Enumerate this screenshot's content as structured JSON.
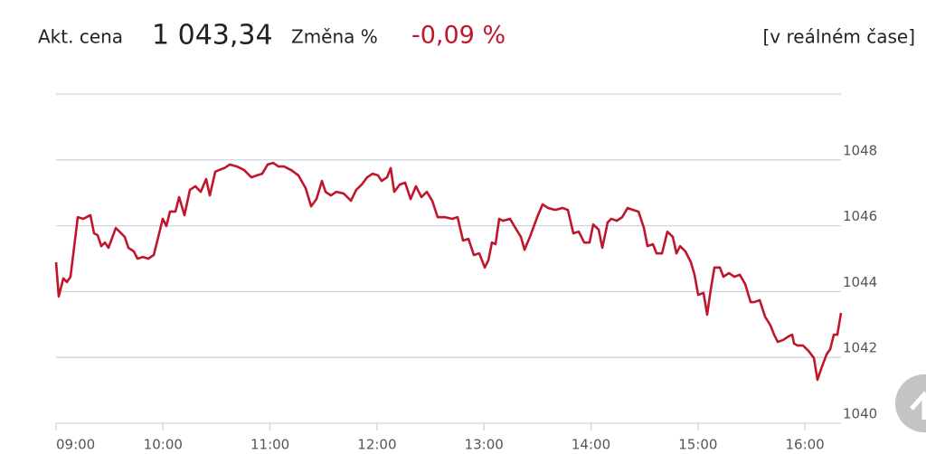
{
  "header": {
    "price_label": "Akt. cena",
    "price": "1 043,34",
    "change_label": "Změna %",
    "change": "-0,09 %",
    "mode": "[v reálném čase]"
  },
  "chart_data": {
    "type": "line",
    "x": [
      9,
      9.025,
      9.068,
      9.101,
      9.135,
      9.203,
      9.254,
      9.321,
      9.355,
      9.389,
      9.423,
      9.456,
      9.49,
      9.558,
      9.609,
      9.642,
      9.676,
      9.727,
      9.761,
      9.811,
      9.862,
      9.913,
      9.964,
      9.997,
      10.031,
      10.065,
      10.116,
      10.15,
      10.2,
      10.251,
      10.302,
      10.352,
      10.403,
      10.437,
      10.488,
      10.522,
      10.572,
      10.623,
      10.691,
      10.758,
      10.826,
      10.877,
      10.927,
      10.978,
      11.029,
      11.079,
      11.13,
      11.198,
      11.265,
      11.333,
      11.384,
      11.434,
      11.485,
      11.519,
      11.57,
      11.62,
      11.688,
      11.756,
      11.806,
      11.857,
      11.908,
      11.959,
      12.009,
      12.043,
      12.094,
      12.128,
      12.161,
      12.212,
      12.263,
      12.314,
      12.364,
      12.415,
      12.466,
      12.516,
      12.567,
      12.635,
      12.702,
      12.753,
      12.804,
      12.855,
      12.905,
      12.956,
      13.007,
      13.041,
      13.074,
      13.108,
      13.142,
      13.176,
      13.243,
      13.294,
      13.345,
      13.379,
      13.429,
      13.497,
      13.548,
      13.598,
      13.666,
      13.734,
      13.784,
      13.835,
      13.886,
      13.937,
      13.987,
      14.021,
      14.072,
      14.106,
      14.156,
      14.19,
      14.241,
      14.292,
      14.342,
      14.393,
      14.444,
      14.495,
      14.528,
      14.579,
      14.613,
      14.664,
      14.714,
      14.765,
      14.799,
      14.833,
      14.883,
      14.934,
      14.968,
      15.002,
      15.052,
      15.086,
      15.12,
      15.154,
      15.205,
      15.238,
      15.289,
      15.34,
      15.391,
      15.441,
      15.492,
      15.526,
      15.577,
      15.627,
      15.678,
      15.712,
      15.746,
      15.796,
      15.847,
      15.881,
      15.898,
      15.932,
      15.982,
      16.033,
      16.084,
      16.117,
      16.151,
      16.202,
      16.236,
      16.27,
      16.303,
      16.337
    ],
    "series": [
      {
        "color": "#c0162c",
        "values": [
          1044.89,
          1043.85,
          1044.4,
          1044.29,
          1044.45,
          1046.26,
          1046.21,
          1046.32,
          1045.77,
          1045.71,
          1045.38,
          1045.49,
          1045.33,
          1045.93,
          1045.77,
          1045.66,
          1045.33,
          1045.22,
          1045.0,
          1045.05,
          1045.0,
          1045.11,
          1045.77,
          1046.21,
          1045.99,
          1046.43,
          1046.43,
          1046.87,
          1046.32,
          1047.09,
          1047.2,
          1047.03,
          1047.42,
          1046.92,
          1047.64,
          1047.69,
          1047.75,
          1047.86,
          1047.8,
          1047.69,
          1047.47,
          1047.53,
          1047.58,
          1047.86,
          1047.91,
          1047.8,
          1047.8,
          1047.69,
          1047.53,
          1047.14,
          1046.59,
          1046.81,
          1047.36,
          1047.03,
          1046.92,
          1047.03,
          1046.98,
          1046.76,
          1047.09,
          1047.25,
          1047.47,
          1047.58,
          1047.53,
          1047.36,
          1047.47,
          1047.75,
          1047.03,
          1047.25,
          1047.31,
          1046.81,
          1047.2,
          1046.87,
          1047.03,
          1046.76,
          1046.26,
          1046.26,
          1046.21,
          1046.26,
          1045.55,
          1045.6,
          1045.11,
          1045.16,
          1044.73,
          1044.95,
          1045.49,
          1045.44,
          1046.21,
          1046.15,
          1046.21,
          1045.93,
          1045.66,
          1045.27,
          1045.66,
          1046.26,
          1046.65,
          1046.54,
          1046.48,
          1046.54,
          1046.48,
          1045.77,
          1045.82,
          1045.49,
          1045.49,
          1046.04,
          1045.88,
          1045.33,
          1046.1,
          1046.21,
          1046.15,
          1046.26,
          1046.54,
          1046.48,
          1046.43,
          1045.93,
          1045.38,
          1045.44,
          1045.16,
          1045.16,
          1045.82,
          1045.66,
          1045.16,
          1045.38,
          1045.22,
          1044.89,
          1044.51,
          1043.9,
          1043.96,
          1043.3,
          1044.07,
          1044.73,
          1044.73,
          1044.45,
          1044.56,
          1044.45,
          1044.51,
          1044.23,
          1043.68,
          1043.68,
          1043.74,
          1043.24,
          1042.97,
          1042.69,
          1042.47,
          1042.53,
          1042.64,
          1042.69,
          1042.42,
          1042.36,
          1042.36,
          1042.2,
          1041.98,
          1041.32,
          1041.65,
          1042.09,
          1042.25,
          1042.69,
          1042.69,
          1043.35
        ]
      }
    ],
    "xlim": [
      9,
      16.337
    ],
    "xticks": [
      {
        "value": 9,
        "label": "09:00"
      },
      {
        "value": 10,
        "label": "10:00"
      },
      {
        "value": 11,
        "label": "11:00"
      },
      {
        "value": 12,
        "label": "12:00"
      },
      {
        "value": 13,
        "label": "13:00"
      },
      {
        "value": 14,
        "label": "14:00"
      },
      {
        "value": 15,
        "label": "15:00"
      },
      {
        "value": 16,
        "label": "16:00"
      }
    ],
    "ylim": [
      1040,
      1050
    ],
    "yticks": [
      1040,
      1042,
      1044,
      1046,
      1048
    ],
    "grid": true
  }
}
